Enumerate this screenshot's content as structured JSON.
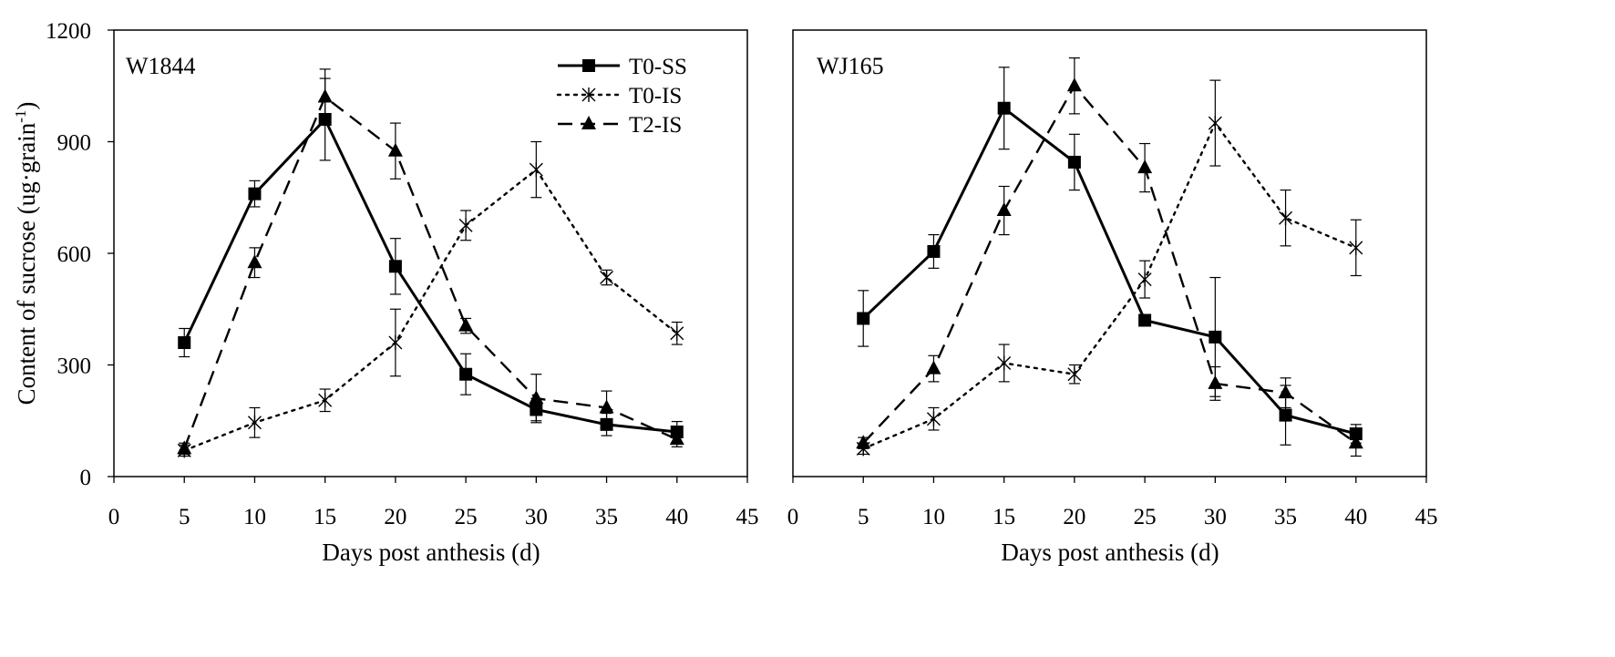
{
  "chart_data": [
    {
      "type": "line",
      "title": "W1844",
      "xlabel": "Days post anthesis (d)",
      "ylabel_main": "Content of sucrose (ug·grain",
      "ylabel_sup": "-1",
      "ylabel_close": ")",
      "xlim": [
        0,
        45
      ],
      "ylim": [
        0,
        1200
      ],
      "xticks": [
        0,
        5,
        10,
        15,
        20,
        25,
        30,
        35,
        40,
        45
      ],
      "yticks": [
        0,
        300,
        600,
        900,
        1200
      ],
      "legend_position": "top-right",
      "x": [
        5,
        10,
        15,
        20,
        25,
        30,
        35,
        40
      ],
      "series": [
        {
          "name": "T0-SS",
          "style": "solid",
          "marker": "square",
          "values": [
            360,
            760,
            960,
            565,
            275,
            180,
            140,
            120
          ],
          "errors": [
            38,
            35,
            110,
            75,
            55,
            30,
            30,
            28
          ]
        },
        {
          "name": "T0-IS",
          "style": "dotted",
          "marker": "star",
          "values": [
            70,
            145,
            205,
            360,
            675,
            825,
            535,
            385
          ],
          "errors": [
            15,
            40,
            30,
            90,
            40,
            75,
            20,
            30
          ]
        },
        {
          "name": "T2-IS",
          "style": "dashed",
          "marker": "triangle",
          "values": [
            75,
            575,
            1020,
            875,
            405,
            210,
            185,
            100
          ],
          "errors": [
            15,
            40,
            75,
            75,
            20,
            65,
            45,
            20
          ]
        }
      ]
    },
    {
      "type": "line",
      "title": "WJ165",
      "xlabel": "Days post anthesis (d)",
      "xlim": [
        0,
        45
      ],
      "ylim": [
        0,
        1200
      ],
      "xticks": [
        0,
        5,
        10,
        15,
        20,
        25,
        30,
        35,
        40,
        45
      ],
      "x": [
        5,
        10,
        15,
        20,
        25,
        30,
        35,
        40
      ],
      "series": [
        {
          "name": "T0-SS",
          "style": "solid",
          "marker": "square",
          "values": [
            425,
            605,
            990,
            845,
            420,
            375,
            165,
            115
          ],
          "errors": [
            75,
            45,
            110,
            75,
            0,
            160,
            80,
            25
          ]
        },
        {
          "name": "T0-IS",
          "style": "dotted",
          "marker": "star",
          "values": [
            75,
            155,
            305,
            275,
            530,
            950,
            695,
            615
          ],
          "errors": [
            15,
            30,
            50,
            25,
            50,
            115,
            75,
            75
          ]
        },
        {
          "name": "T2-IS",
          "style": "dashed",
          "marker": "triangle",
          "values": [
            90,
            290,
            715,
            1050,
            830,
            250,
            225,
            90
          ],
          "errors": [
            15,
            35,
            65,
            75,
            65,
            45,
            40,
            35
          ]
        }
      ]
    }
  ]
}
